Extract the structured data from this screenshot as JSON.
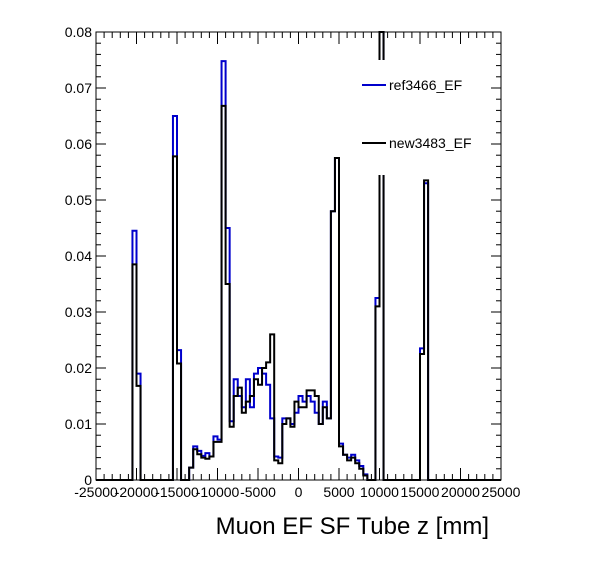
{
  "chart_data": {
    "type": "step",
    "xlabel": "Muon EF SF Tube z [mm]",
    "ylabel": "",
    "xlim": [
      -25000,
      25000
    ],
    "ylim": [
      0,
      0.08
    ],
    "x_ticks": [
      -25000,
      -20000,
      -15000,
      -10000,
      -5000,
      0,
      5000,
      10000,
      15000,
      20000,
      25000
    ],
    "x_tick_labels": [
      "-25000",
      "-20000",
      "-15000",
      "-10000",
      "-5000",
      "0",
      "5000",
      "10000",
      "15000",
      "20000",
      "25000"
    ],
    "y_ticks": [
      0,
      0.01,
      0.02,
      0.03,
      0.04,
      0.05,
      0.06,
      0.07,
      0.08
    ],
    "y_tick_labels": [
      "0",
      "0.01",
      "0.02",
      "0.03",
      "0.04",
      "0.05",
      "0.06",
      "0.07",
      "0.08"
    ],
    "bin_width": 500,
    "legend_position": "top-right",
    "series": [
      {
        "name": "ref3466_EF",
        "color": "#0000cc",
        "bins": [
          [
            -20500,
            0.0445
          ],
          [
            -20000,
            0.019
          ],
          [
            -15500,
            0.065
          ],
          [
            -15000,
            0.0232
          ],
          [
            -13500,
            0.0022
          ],
          [
            -13000,
            0.006
          ],
          [
            -12500,
            0.0052
          ],
          [
            -12000,
            0.0043
          ],
          [
            -11500,
            0.0048
          ],
          [
            -11000,
            0.0042
          ],
          [
            -10500,
            0.0078
          ],
          [
            -10000,
            0.0072
          ],
          [
            -9500,
            0.0748
          ],
          [
            -9000,
            0.045
          ],
          [
            -8500,
            0.0105
          ],
          [
            -8000,
            0.018
          ],
          [
            -7500,
            0.015
          ],
          [
            -7000,
            0.013
          ],
          [
            -6500,
            0.018
          ],
          [
            -6000,
            0.013
          ],
          [
            -5500,
            0.019
          ],
          [
            -5000,
            0.02
          ],
          [
            -4500,
            0.019
          ],
          [
            -4000,
            0.017
          ],
          [
            -3500,
            0.011
          ],
          [
            -3000,
            0.0042
          ],
          [
            -2500,
            0.004
          ],
          [
            -2000,
            0.011
          ],
          [
            -1500,
            0.011
          ],
          [
            -1000,
            0.01
          ],
          [
            -500,
            0.012
          ],
          [
            0,
            0.015
          ],
          [
            500,
            0.014
          ],
          [
            1000,
            0.015
          ],
          [
            1500,
            0.014
          ],
          [
            2000,
            0.012
          ],
          [
            2500,
            0.01
          ],
          [
            3000,
            0.014
          ],
          [
            3500,
            0.011
          ],
          [
            4000,
            0.048
          ],
          [
            4500,
            0.0575
          ],
          [
            5000,
            0.0065
          ],
          [
            5500,
            0.0045
          ],
          [
            6000,
            0.004
          ],
          [
            6500,
            0.0045
          ],
          [
            7000,
            0.0035
          ],
          [
            7500,
            0.0025
          ],
          [
            8000,
            0.001
          ],
          [
            9500,
            0.0325
          ],
          [
            10000,
            0.08
          ],
          [
            15000,
            0.0235
          ],
          [
            15500,
            0.053
          ]
        ]
      },
      {
        "name": "new3483_EF",
        "color": "#000000",
        "bins": [
          [
            -20500,
            0.0385
          ],
          [
            -20000,
            0.0168
          ],
          [
            -15500,
            0.0578
          ],
          [
            -15000,
            0.0208
          ],
          [
            -13500,
            0.0022
          ],
          [
            -13000,
            0.0055
          ],
          [
            -12500,
            0.0046
          ],
          [
            -12000,
            0.004
          ],
          [
            -11500,
            0.0038
          ],
          [
            -11000,
            0.0042
          ],
          [
            -10500,
            0.0068
          ],
          [
            -10000,
            0.0068
          ],
          [
            -9500,
            0.0668
          ],
          [
            -9000,
            0.035
          ],
          [
            -8500,
            0.0095
          ],
          [
            -8000,
            0.015
          ],
          [
            -7500,
            0.0165
          ],
          [
            -7000,
            0.012
          ],
          [
            -6500,
            0.014
          ],
          [
            -6000,
            0.015
          ],
          [
            -5500,
            0.018
          ],
          [
            -5000,
            0.017
          ],
          [
            -4500,
            0.02
          ],
          [
            -4000,
            0.021
          ],
          [
            -3500,
            0.026
          ],
          [
            -3000,
            0.0035
          ],
          [
            -2500,
            0.003
          ],
          [
            -2000,
            0.01
          ],
          [
            -1500,
            0.011
          ],
          [
            -1000,
            0.0095
          ],
          [
            -500,
            0.014
          ],
          [
            0,
            0.013
          ],
          [
            500,
            0.013
          ],
          [
            1000,
            0.016
          ],
          [
            1500,
            0.016
          ],
          [
            2000,
            0.015
          ],
          [
            2500,
            0.01
          ],
          [
            3000,
            0.013
          ],
          [
            3500,
            0.011
          ],
          [
            4000,
            0.048
          ],
          [
            4500,
            0.0575
          ],
          [
            5000,
            0.006
          ],
          [
            5500,
            0.0045
          ],
          [
            6000,
            0.0035
          ],
          [
            6500,
            0.004
          ],
          [
            7000,
            0.003
          ],
          [
            7500,
            0.002
          ],
          [
            8000,
            0.0008
          ],
          [
            9500,
            0.031
          ],
          [
            10000,
            0.08
          ],
          [
            15000,
            0.0225
          ],
          [
            15500,
            0.0535
          ]
        ]
      }
    ]
  }
}
